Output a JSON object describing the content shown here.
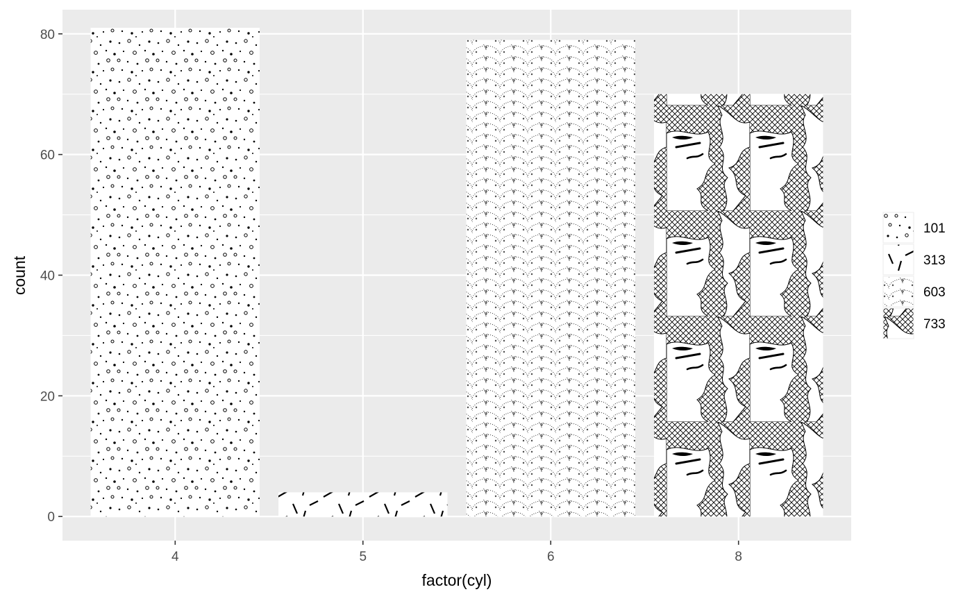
{
  "chart_data": {
    "type": "bar",
    "xlabel": "factor(cyl)",
    "ylabel": "count",
    "categories": [
      "4",
      "5",
      "6",
      "8"
    ],
    "values": [
      81,
      4,
      79,
      70
    ],
    "ylim": [
      -4,
      84
    ],
    "yticks": [
      0,
      20,
      40,
      60,
      80
    ],
    "ytick_labels": [
      "0",
      "20",
      "40",
      "60",
      "80"
    ],
    "grid": true,
    "panel_background": "#ebebeb",
    "grid_color": "#ffffff",
    "legend": {
      "position": "right",
      "entries": [
        {
          "label": "101",
          "pattern": "dots"
        },
        {
          "label": "313",
          "pattern": "dashes"
        },
        {
          "label": "603",
          "pattern": "scales"
        },
        {
          "label": "733",
          "pattern": "crosshatch-waves"
        }
      ]
    },
    "bar_patterns": [
      "dots",
      "dashes",
      "scales",
      "crosshatch-waves"
    ]
  }
}
